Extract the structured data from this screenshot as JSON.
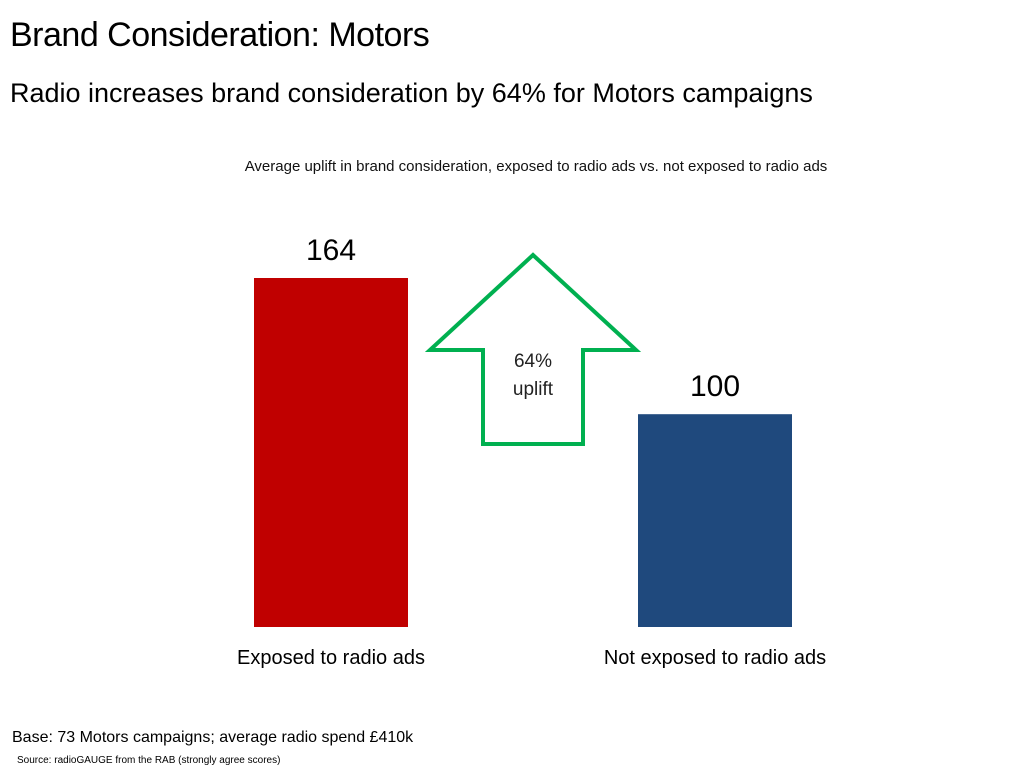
{
  "title": "Brand Consideration: Motors",
  "subtitle": "Radio increases brand consideration by 64% for Motors campaigns",
  "caption": "Average uplift in brand consideration, exposed to radio ads vs. not exposed to radio ads",
  "chart_data": {
    "type": "bar",
    "categories": [
      "Exposed to radio ads",
      "Not exposed to radio ads"
    ],
    "values": [
      164,
      100
    ],
    "value_labels": [
      "164",
      "100"
    ],
    "colors": [
      "#c00000",
      "#1f497d"
    ],
    "ylim": [
      0,
      164
    ],
    "grid": false,
    "annotation": {
      "shape": "up-arrow",
      "line1": "64%",
      "line2": "uplift",
      "color": "#00b050"
    }
  },
  "footer": {
    "base": "Base: 73 Motors campaigns; average radio spend £410k",
    "source": "Source: radioGAUGE from the RAB (strongly agree scores)"
  }
}
